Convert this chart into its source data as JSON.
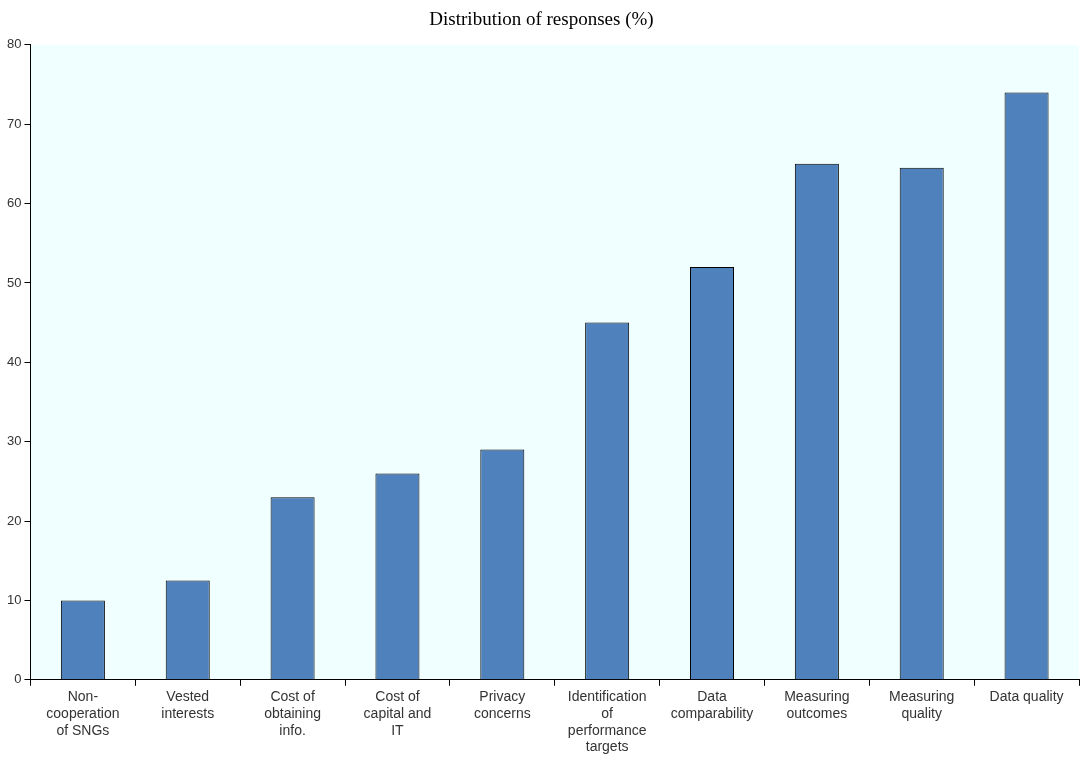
{
  "chart_data": {
    "type": "bar",
    "title": "Distribution of responses (%)",
    "categories": [
      "Non-cooperation of SNGs",
      "Vested interests",
      "Cost of obtaining info.",
      "Cost of capital and IT",
      "Privacy concerns",
      "Identification of performance targets",
      "Data comparability",
      "Measuring outcomes",
      "Measuring quality",
      "Data quality"
    ],
    "values": [
      10,
      12.5,
      23,
      26,
      29,
      45,
      52,
      65,
      64.5,
      74
    ],
    "color": "#4f81bd",
    "ylim": [
      0,
      80
    ],
    "yticks": [
      0,
      10,
      20,
      30,
      40,
      50,
      60,
      70,
      80
    ],
    "grid": false,
    "legend": false
  }
}
